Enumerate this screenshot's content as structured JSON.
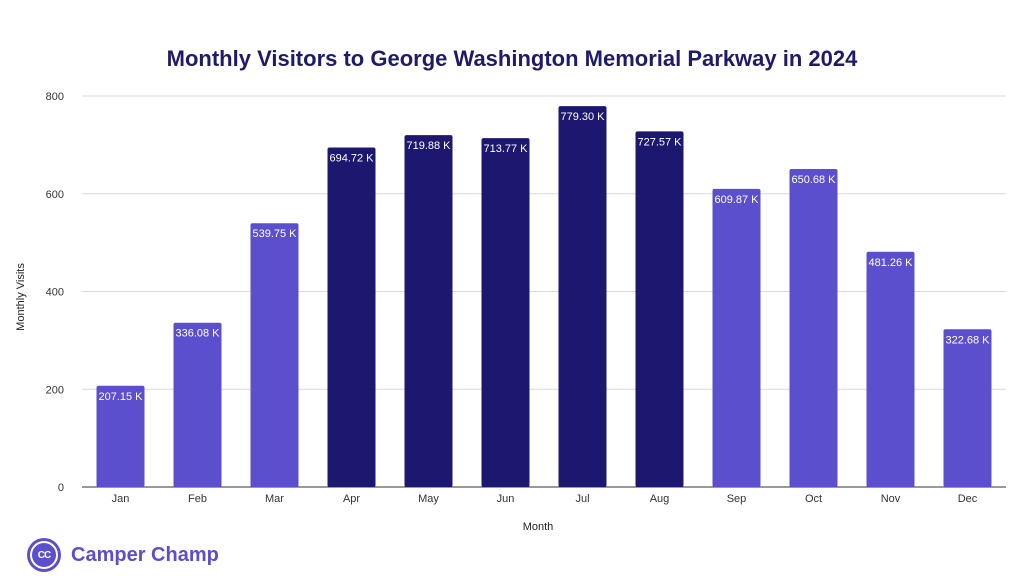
{
  "chart_data": {
    "type": "bar",
    "title": "Monthly Visitors to George Washington Memorial Parkway in 2024",
    "xlabel": "Month",
    "ylabel": "Monthly Visits",
    "ylim": [
      0,
      800
    ],
    "yticks": [
      0,
      200,
      400,
      600,
      800
    ],
    "grid": true,
    "categories": [
      "Jan",
      "Feb",
      "Mar",
      "Apr",
      "May",
      "Jun",
      "Jul",
      "Aug",
      "Sep",
      "Oct",
      "Nov",
      "Dec"
    ],
    "values": [
      207.15,
      336.08,
      539.75,
      694.72,
      719.88,
      713.77,
      779.3,
      727.57,
      609.87,
      650.68,
      481.26,
      322.68
    ],
    "data_labels": [
      "207.15 K",
      "336.08 K",
      "539.75 K",
      "694.72 K",
      "719.88 K",
      "713.77 K",
      "779.30 K",
      "727.57 K",
      "609.87 K",
      "650.68 K",
      "481.26 K",
      "322.68 K"
    ],
    "highlight": [
      false,
      false,
      false,
      true,
      true,
      true,
      true,
      true,
      false,
      false,
      false,
      false
    ],
    "colors": {
      "normal": "#5b4fce",
      "highlight": "#1c1870"
    }
  },
  "brand": {
    "logo_text": "CC",
    "name": "Camper Champ",
    "color": "#5b4fce"
  }
}
